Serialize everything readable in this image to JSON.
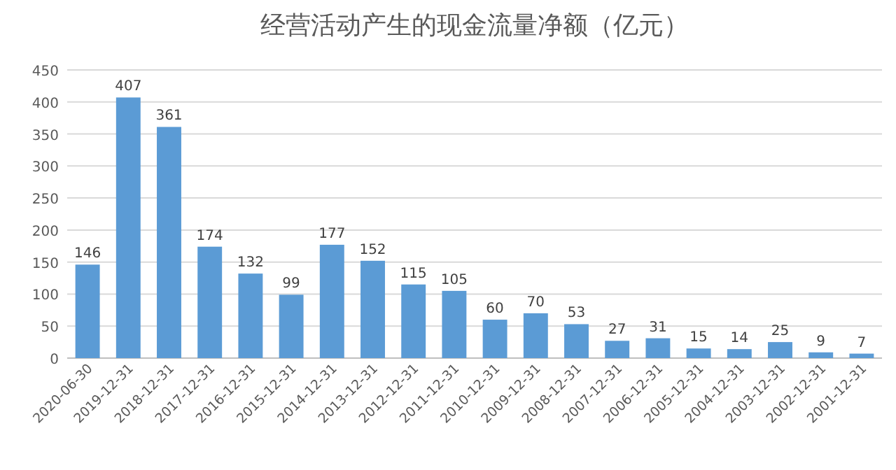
{
  "chart_data": {
    "type": "bar",
    "title": "经营活动产生的现金流量净额（亿元）",
    "categories": [
      "2020-06-30",
      "2019-12-31",
      "2018-12-31",
      "2017-12-31",
      "2016-12-31",
      "2015-12-31",
      "2014-12-31",
      "2013-12-31",
      "2012-12-31",
      "2011-12-31",
      "2010-12-31",
      "2009-12-31",
      "2008-12-31",
      "2007-12-31",
      "2006-12-31",
      "2005-12-31",
      "2004-12-31",
      "2003-12-31",
      "2002-12-31",
      "2001-12-31"
    ],
    "values": [
      146,
      407,
      361,
      174,
      132,
      99,
      177,
      152,
      115,
      105,
      60,
      70,
      53,
      27,
      31,
      15,
      14,
      25,
      9,
      7
    ],
    "color": "#5b9bd5",
    "ylim": [
      0,
      450
    ],
    "yticks": [
      0,
      50,
      100,
      150,
      200,
      250,
      300,
      350,
      400,
      450
    ],
    "grid": "y",
    "data_labels": true
  }
}
